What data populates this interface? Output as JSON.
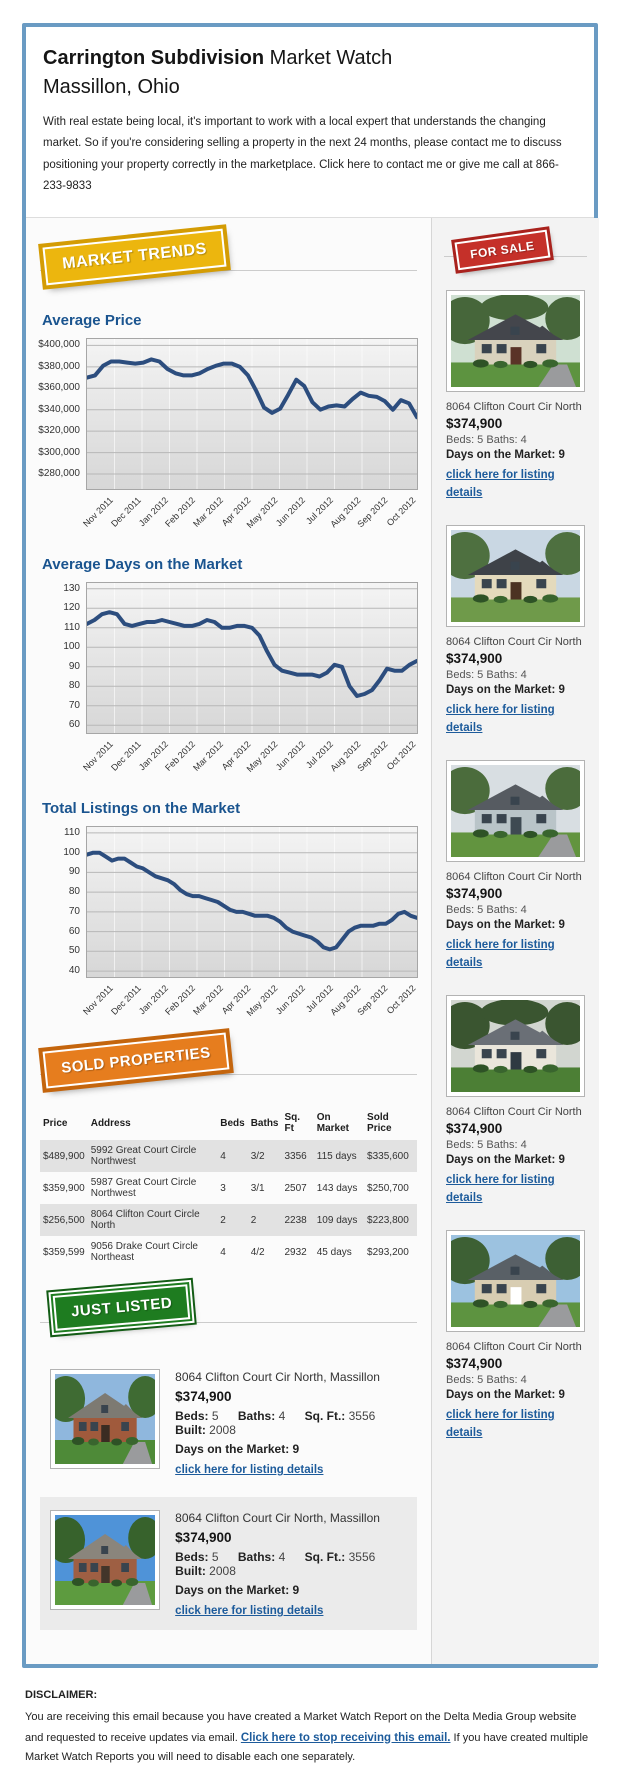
{
  "header": {
    "title_bold": "Carrington Subdivision",
    "title_rest": " Market Watch",
    "subtitle": "Massillon, Ohio",
    "intro": "With real estate being local, it's important to work with a local expert that understands the changing market. So if you're considering selling a property in the next 24 months, please contact me to discuss positioning your property correctly in the marketplace. Click here to contact me or give me call at 866-233-9833"
  },
  "badges": {
    "market_trends": "MARKET TRENDS",
    "for_sale": "FOR SALE",
    "sold_properties": "SOLD PROPERTIES",
    "just_listed": "JUST LISTED"
  },
  "colors": {
    "frame_border": "#6a9bc3",
    "heading_blue": "#1a548f",
    "link_blue": "#1d5b9b",
    "chart_line": "#2c4d7e",
    "badge_yellow": "#ecb60e",
    "badge_red": "#c53029",
    "badge_orange": "#e67d1e",
    "badge_green": "#1e7c20"
  },
  "chart_data": [
    {
      "type": "line",
      "title": "Average Price",
      "xlabel": "",
      "ylabel": "",
      "grid": true,
      "legend": "none",
      "categories": [
        "Nov 2011",
        "Dec 2011",
        "Jan 2012",
        "Feb 2012",
        "Mar 2012",
        "Apr 2012",
        "May 2012",
        "Jun 2012",
        "Jul 2012",
        "Aug 2012",
        "Sep 2012",
        "Oct 2012"
      ],
      "ylim": [
        266000,
        406000
      ],
      "ytick_values": [
        400000,
        380000,
        360000,
        340000,
        320000,
        300000,
        280000
      ],
      "ytick_labels": [
        "$400,000",
        "$380,000",
        "$360,000",
        "$340,000",
        "$320,000",
        "$300,000",
        "$280,000"
      ],
      "values": [
        370000,
        372000,
        381000,
        385000,
        385000,
        384000,
        383000,
        384000,
        387000,
        385000,
        378000,
        374000,
        372000,
        372000,
        374000,
        378000,
        381000,
        383000,
        383000,
        380000,
        372000,
        358000,
        342000,
        337000,
        341000,
        354000,
        368000,
        362000,
        347000,
        340000,
        343000,
        344000,
        343000,
        350000,
        356000,
        353000,
        352000,
        348000,
        340000,
        349000,
        346000,
        333000
      ]
    },
    {
      "type": "line",
      "title": "Average Days on the Market",
      "xlabel": "",
      "ylabel": "",
      "grid": true,
      "legend": "none",
      "categories": [
        "Nov 2011",
        "Dec 2011",
        "Jan 2012",
        "Feb 2012",
        "Mar 2012",
        "Apr 2012",
        "May 2012",
        "Jun 2012",
        "Jul 2012",
        "Aug 2012",
        "Sep 2012",
        "Oct 2012"
      ],
      "ylim": [
        56,
        133
      ],
      "ytick_values": [
        130,
        120,
        110,
        100,
        90,
        80,
        70,
        60
      ],
      "ytick_labels": [
        "130",
        "120",
        "110",
        "100",
        "90",
        "80",
        "70",
        "60"
      ],
      "values": [
        112,
        114,
        117,
        118,
        117,
        112,
        111,
        112,
        113,
        113,
        114,
        113,
        112,
        111,
        111,
        112,
        114,
        113,
        110,
        110,
        111,
        111,
        110,
        106,
        98,
        91,
        88,
        87,
        86,
        86,
        86,
        85,
        87,
        91,
        90,
        80,
        75,
        76,
        78,
        83,
        89,
        88,
        88,
        91,
        93
      ]
    },
    {
      "type": "line",
      "title": "Total Listings on the Market",
      "xlabel": "",
      "ylabel": "",
      "grid": true,
      "legend": "none",
      "categories": [
        "Nov 2011",
        "Dec 2011",
        "Jan 2012",
        "Feb 2012",
        "Mar 2012",
        "Apr 2012",
        "May 2012",
        "Jun 2012",
        "Jul 2012",
        "Aug 2012",
        "Sep 2012",
        "Oct 2012"
      ],
      "ylim": [
        37,
        113
      ],
      "ytick_values": [
        110,
        100,
        90,
        80,
        70,
        60,
        50,
        40
      ],
      "ytick_labels": [
        "110",
        "100",
        "90",
        "80",
        "70",
        "60",
        "50",
        "40"
      ],
      "values": [
        99,
        100,
        100,
        98,
        96,
        97,
        97,
        95,
        93,
        92,
        90,
        88,
        87,
        86,
        84,
        81,
        79,
        78,
        78,
        77,
        76,
        75,
        73,
        71,
        70,
        70,
        69,
        68,
        68,
        68,
        67,
        65,
        62,
        60,
        59,
        58,
        57,
        55,
        52,
        51,
        52,
        56,
        60,
        62,
        63,
        63,
        63,
        64,
        64,
        66,
        69,
        70,
        68,
        67
      ]
    }
  ],
  "sidebar": {
    "listings": [
      {
        "address": "8064 Clifton Court Cir North",
        "price": "$374,900",
        "beds_baths": "Beds: 5 Baths: 4",
        "days": "Days on the Market: 9",
        "link": "click here for listing details"
      },
      {
        "address": "8064 Clifton Court Cir North",
        "price": "$374,900",
        "beds_baths": "Beds: 5 Baths: 4",
        "days": "Days on the Market: 9",
        "link": "click here for listing details"
      },
      {
        "address": "8064 Clifton Court Cir North",
        "price": "$374,900",
        "beds_baths": "Beds: 5 Baths: 4",
        "days": "Days on the Market: 9",
        "link": "click here for listing details"
      },
      {
        "address": "8064 Clifton Court Cir North",
        "price": "$374,900",
        "beds_baths": "Beds: 5 Baths: 4",
        "days": "Days on the Market: 9",
        "link": "click here for listing details"
      },
      {
        "address": "8064 Clifton Court Cir North",
        "price": "$374,900",
        "beds_baths": "Beds: 5 Baths: 4",
        "days": "Days on the Market: 9",
        "link": "click here for listing details"
      }
    ]
  },
  "sold_table": {
    "headers": [
      "Price",
      "Address",
      "Beds",
      "Baths",
      "Sq. Ft",
      "On Market",
      "Sold Price"
    ],
    "rows": [
      [
        "$489,900",
        "5992 Great Court Circle Northwest",
        "4",
        "3/2",
        "3356",
        "115 days",
        "$335,600"
      ],
      [
        "$359,900",
        "5987 Great Court Circle Northwest",
        "3",
        "3/1",
        "2507",
        "143 days",
        "$250,700"
      ],
      [
        "$256,500",
        "8064 Clifton Court Circle North",
        "2",
        "2",
        "2238",
        "109 days",
        "$223,800"
      ],
      [
        "$359,599",
        "9056 Drake Court Circle Northeast",
        "4",
        "4/2",
        "2932",
        "45 days",
        "$293,200"
      ]
    ]
  },
  "just_listed": {
    "items": [
      {
        "address": "8064 Clifton Court Cir North, Massillon",
        "price": "$374,900",
        "specs": [
          {
            "label": "Beds:",
            "value": "5"
          },
          {
            "label": "Baths:",
            "value": "4"
          },
          {
            "label": "Sq. Ft.:",
            "value": "3556"
          },
          {
            "label": "Built:",
            "value": "2008"
          }
        ],
        "days": "Days on the Market: 9",
        "link": "click here for listing details"
      },
      {
        "address": "8064 Clifton Court Cir North, Massillon",
        "price": "$374,900",
        "specs": [
          {
            "label": "Beds:",
            "value": "5"
          },
          {
            "label": "Baths:",
            "value": "4"
          },
          {
            "label": "Sq. Ft.:",
            "value": "3556"
          },
          {
            "label": "Built:",
            "value": "2008"
          }
        ],
        "days": "Days on the Market: 9",
        "link": "click here for listing details"
      }
    ]
  },
  "disclaimer": {
    "heading": "DISCLAIMER:",
    "text_before": "You are receiving this email because you have created a Market Watch Report on the Delta Media Group website and requested to receive updates via email. ",
    "link": "Click here to stop receiving this email.",
    "text_after": " If you have created multiple Market Watch Reports you will need to disable each one separately."
  }
}
